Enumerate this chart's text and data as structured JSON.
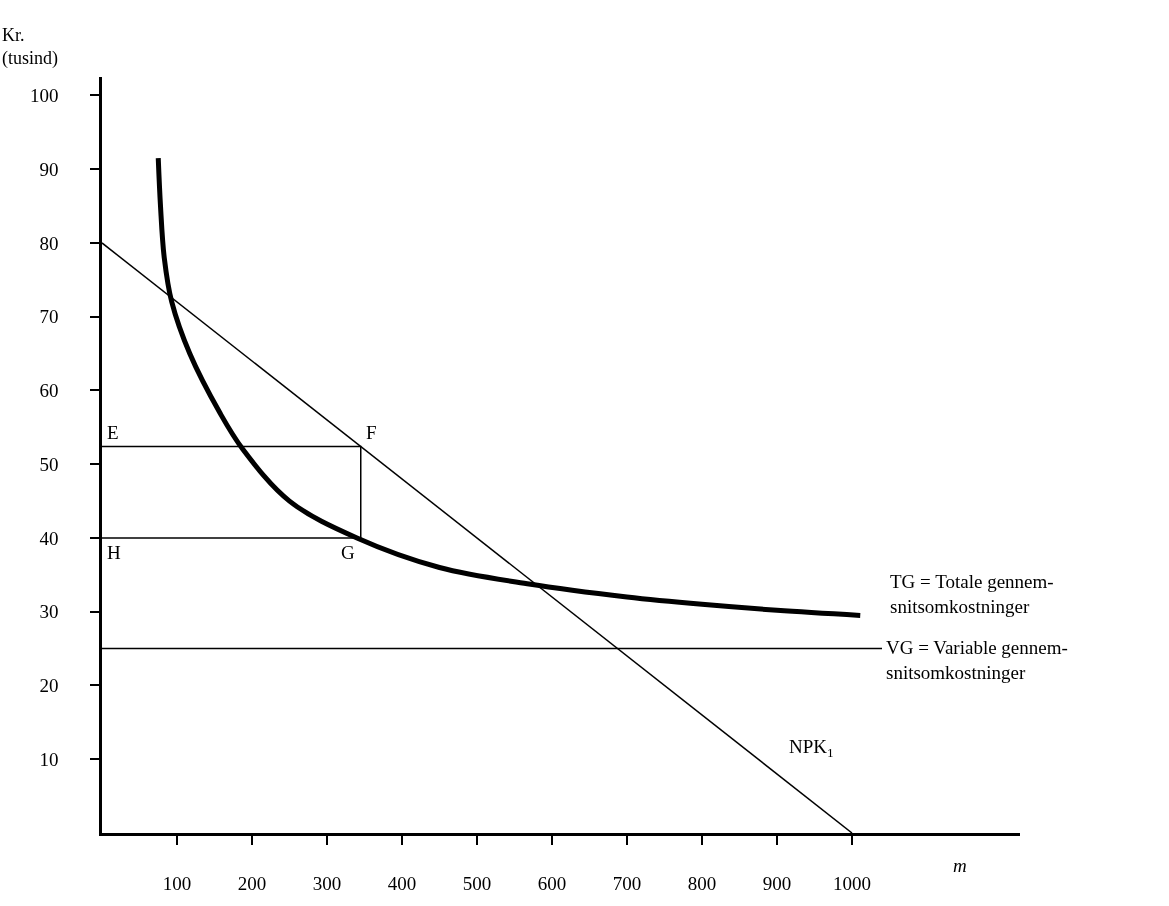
{
  "chart_data": {
    "type": "line",
    "xlabel": "m",
    "ylabel": "Kr.\n(tusind)",
    "xlim": [
      0,
      1224
    ],
    "ylim": [
      0,
      102.5
    ],
    "xticks": [
      100,
      200,
      300,
      400,
      500,
      600,
      700,
      800,
      900,
      1000
    ],
    "yticks": [
      10,
      20,
      30,
      40,
      50,
      60,
      70,
      80,
      90,
      100
    ],
    "marker": "none",
    "line_style": "solid",
    "series": [
      {
        "color": "#000000",
        "x": [
          75,
          78,
          83,
          93,
          117,
          157,
          188,
          250,
          340,
          450,
          567,
          700,
          800,
          900,
          1011
        ],
        "values": [
          91.5,
          85,
          78,
          72,
          65,
          57,
          52,
          45,
          40,
          36,
          33.8,
          32,
          31,
          30.2,
          29.5
        ]
      },
      {
        "color": "#000000",
        "x": [
          0,
          1000
        ],
        "values": [
          80,
          0
        ]
      },
      {
        "color": "#000000",
        "x": [
          0,
          1040
        ],
        "values": [
          25,
          25
        ]
      },
      {
        "color": "#000000",
        "x": [
          0,
          345,
          345
        ],
        "values": [
          52.4,
          52.4,
          40
        ]
      },
      {
        "color": "#000000",
        "x": [
          0,
          345
        ],
        "values": [
          40,
          40
        ]
      }
    ],
    "annotations": [
      {
        "text": "E",
        "x": 0,
        "y": 52.4
      },
      {
        "text": "F",
        "x": 345,
        "y": 52.4
      },
      {
        "text": "G",
        "x": 345,
        "y": 40
      },
      {
        "text": "H",
        "x": 0,
        "y": 40
      },
      {
        "text": "NPK$_{1}$",
        "x": 900,
        "y": 8
      },
      {
        "text": "TG = Totale gennem-\nsnitsomkostninger",
        "x": 1011,
        "y": 29.5
      },
      {
        "text": "VG = Variable gennem-\nsnitsomkostninger",
        "x": 1040,
        "y": 25
      }
    ]
  }
}
